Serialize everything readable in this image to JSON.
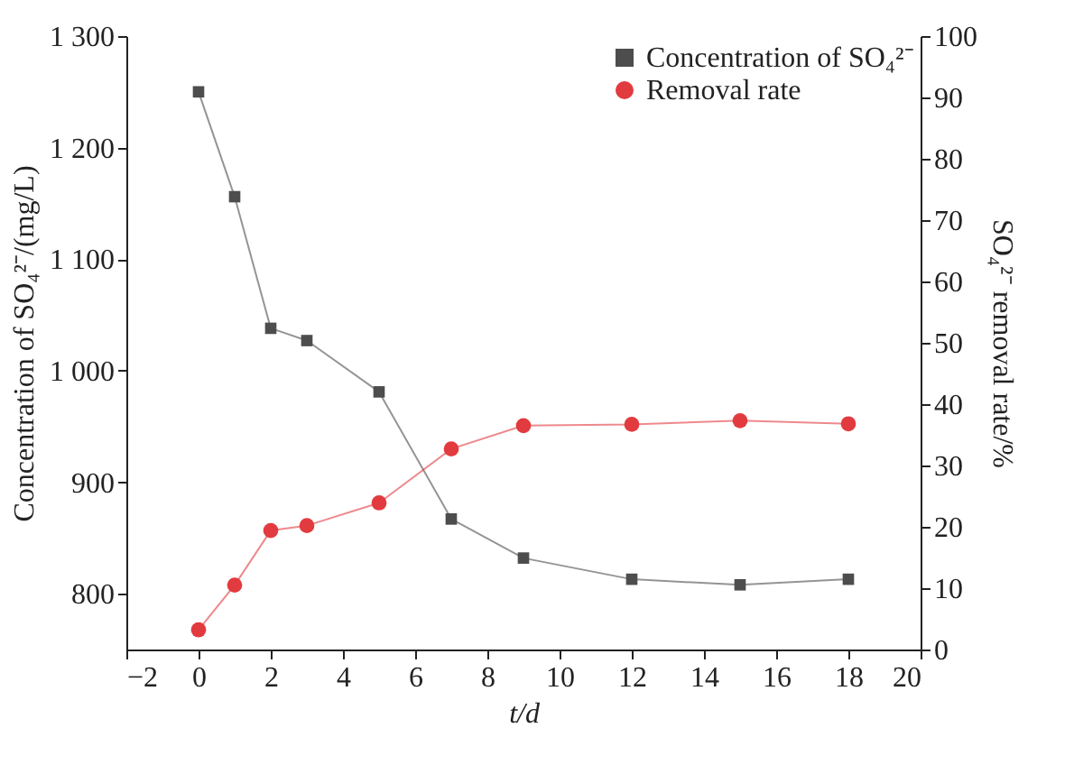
{
  "chart_data": {
    "type": "line",
    "xlabel": "t/d",
    "ylabel": "Concentration of SO₄²⁻/(mg/L)",
    "y2label": "SO₄²⁻ removal rate/%",
    "x": [
      0,
      1,
      2,
      3,
      5,
      7,
      9,
      12,
      15,
      18
    ],
    "series": [
      {
        "name": "Concentration of SO₄²⁻",
        "color": "#4d4d4d",
        "marker": "square",
        "values": [
          1250,
          1156,
          1038,
          1027,
          981,
          867,
          832,
          813,
          808,
          813
        ]
      },
      {
        "name": "Removal rate",
        "color": "#e23b3f",
        "marker": "circle",
        "axis": "y2",
        "values": [
          3.2,
          10.5,
          19.4,
          20.2,
          23.9,
          32.7,
          36.5,
          36.7,
          37.3,
          36.8
        ]
      }
    ],
    "xlim": [
      -2,
      20
    ],
    "xticks": [
      -2,
      0,
      2,
      4,
      6,
      8,
      10,
      12,
      14,
      16,
      18,
      20
    ],
    "ylim": [
      750,
      1300
    ],
    "yticks": [
      800,
      900,
      {
        "value": 1000,
        "label": "1 000"
      },
      {
        "value": 1100,
        "label": "1 100"
      },
      {
        "value": 1200,
        "label": "1 200"
      },
      {
        "value": 1300,
        "label": "1 300"
      }
    ],
    "y2lim": [
      0,
      100
    ],
    "y2ticks": [
      0,
      10,
      20,
      30,
      40,
      50,
      60,
      70,
      80,
      90,
      100
    ],
    "grid": false,
    "legend": "top right",
    "line_style": "solid"
  }
}
